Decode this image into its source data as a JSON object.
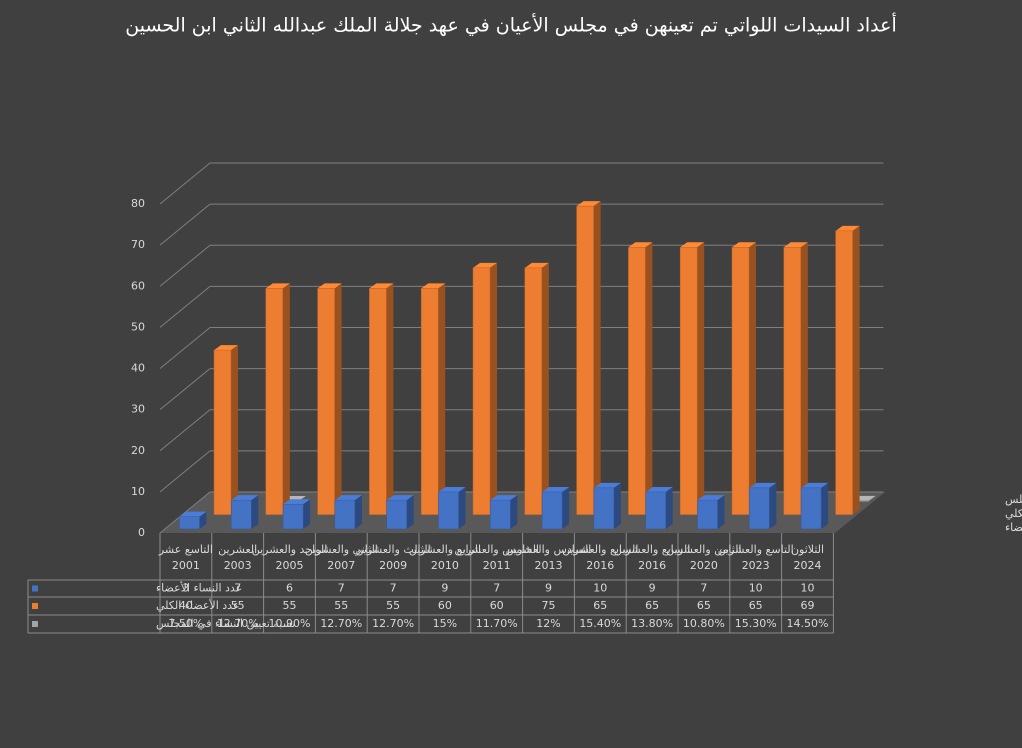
{
  "chart_data": {
    "type": "bar3d",
    "title": "أعداد السيدات اللواتي تم تعينهن في مجلس الأعيان في عهد جلالة الملك عبدالله الثاني ابن الحسين",
    "categories": [
      [
        "التاسع عشر",
        "2001"
      ],
      [
        "العشرين",
        "2003"
      ],
      [
        "الواحد والعشرين",
        "2005"
      ],
      [
        "الثاني والعشرين",
        "2007"
      ],
      [
        "الثالث والعشرين",
        "2009"
      ],
      [
        "الرابع والعشرين",
        "2010"
      ],
      [
        "الخامس والعشرين",
        "2011"
      ],
      [
        "السادس والعشرين",
        "2013"
      ],
      [
        "السابع والعشرين",
        "2016"
      ],
      [
        "السابع والعشرين",
        "2016"
      ],
      [
        "الثامن والعشرين",
        "2020"
      ],
      [
        "التاسع والعشرين",
        "2023"
      ],
      [
        "الثلاثون",
        "2024"
      ]
    ],
    "series": [
      {
        "name": "عدد النساء الأعضاء",
        "color": "#4472c4",
        "values": [
          3,
          7,
          6,
          7,
          7,
          9,
          7,
          9,
          10,
          9,
          7,
          10,
          10
        ]
      },
      {
        "name": "عدد الأعضاء الكلي",
        "color": "#ed7d31",
        "values": [
          40,
          55,
          55,
          55,
          55,
          60,
          60,
          75,
          65,
          65,
          65,
          65,
          69
        ]
      },
      {
        "name": "نسبة تعيين النساء في المجلس",
        "color": "#a5a5a5",
        "values": [
          0.075,
          0.127,
          0.109,
          0.127,
          0.127,
          0.15,
          0.117,
          0.12,
          0.154,
          0.138,
          0.108,
          0.153,
          0.145
        ],
        "value_labels": [
          "7.50%",
          "12.70%",
          "10.90%",
          "12.70%",
          "12.70%",
          "15%",
          "11.70%",
          "12%",
          "15.40%",
          "13.80%",
          "10.80%",
          "15.30%",
          "14.50%"
        ]
      }
    ],
    "ylim": [
      0,
      80
    ],
    "yticks": [
      0,
      10,
      20,
      30,
      40,
      50,
      60,
      70,
      80
    ],
    "grid": true
  }
}
